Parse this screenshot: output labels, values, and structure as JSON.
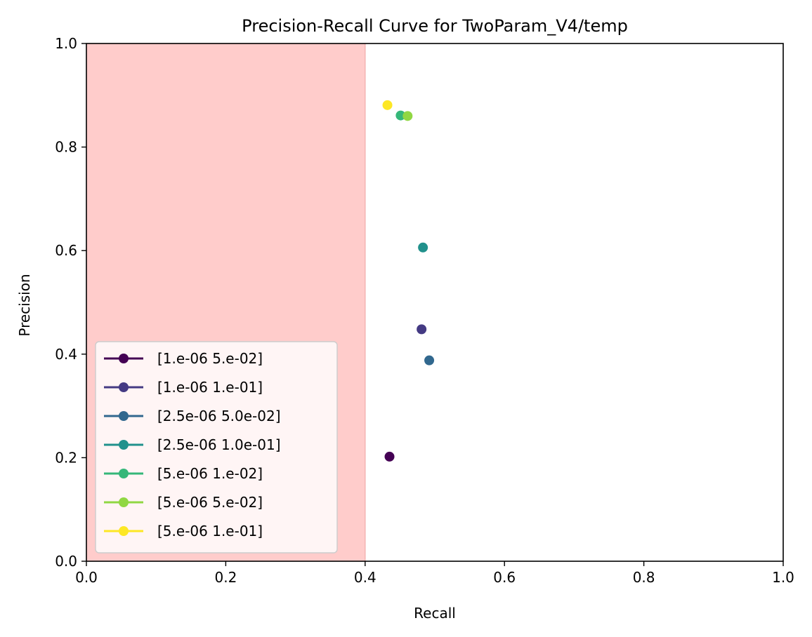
{
  "chart_data": {
    "type": "scatter",
    "title": "Precision-Recall Curve for TwoParam_V4/temp",
    "xlabel": "Recall",
    "ylabel": "Precision",
    "xlim": [
      0.0,
      1.0
    ],
    "ylim": [
      0.0,
      1.0
    ],
    "xticks": [
      "0.0",
      "0.2",
      "0.4",
      "0.6",
      "0.8",
      "1.0"
    ],
    "yticks": [
      "0.0",
      "0.2",
      "0.4",
      "0.6",
      "0.8",
      "1.0"
    ],
    "grid": false,
    "legend_position": "lower-left",
    "shaded_region": {
      "x_from": 0.0,
      "x_to": 0.4,
      "color": "#ffcccb"
    },
    "series": [
      {
        "name": "[1.e-06 5.e-02]",
        "color": "#440154",
        "x": [
          0.435
        ],
        "y": [
          0.202
        ]
      },
      {
        "name": "[1.e-06 1.e-01]",
        "color": "#443a83",
        "x": [
          0.481
        ],
        "y": [
          0.448
        ]
      },
      {
        "name": "[2.5e-06 5.0e-02]",
        "color": "#31688e",
        "x": [
          0.492
        ],
        "y": [
          0.388
        ]
      },
      {
        "name": "[2.5e-06 1.0e-01]",
        "color": "#21918c",
        "x": [
          0.483
        ],
        "y": [
          0.606
        ]
      },
      {
        "name": "[5.e-06 1.e-02]",
        "color": "#35b779",
        "x": [
          0.451
        ],
        "y": [
          0.861
        ]
      },
      {
        "name": "[5.e-06 5.e-02]",
        "color": "#90d743",
        "x": [
          0.461
        ],
        "y": [
          0.86
        ]
      },
      {
        "name": "[5.e-06 1.e-01]",
        "color": "#fde725",
        "x": [
          0.432
        ],
        "y": [
          0.881
        ]
      }
    ]
  }
}
